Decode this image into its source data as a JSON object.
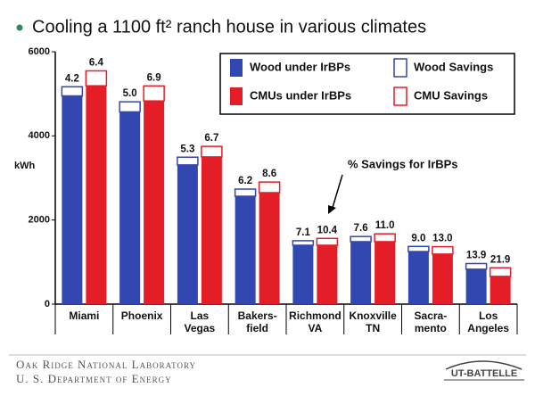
{
  "chart_data": {
    "type": "stacked-bar",
    "title": "Cooling a 1100 ft² ranch house in various climates",
    "ylabel": "kWh",
    "annotation": "% Savings for IrBPs",
    "categories": [
      "Miami",
      "Phoenix",
      "Las\nVegas",
      "Bakers-\nfield",
      "Richmond\nVA",
      "Knoxville\nTN",
      "Sacra-\nmento",
      "Los\nAngeles"
    ],
    "series": [
      {
        "name": "Wood under IrBPs",
        "color": "#3347b0",
        "stack": "wood",
        "values": [
          4950,
          4570,
          3310,
          2565,
          1400,
          1485,
          1250,
          830
        ]
      },
      {
        "name": "Wood Savings",
        "color": "#3347b0",
        "stack": "wood",
        "values": [
          217,
          240,
          183,
          170,
          107,
          122,
          122,
          135
        ],
        "value_labels": [
          "4.2",
          "5.0",
          "5.3",
          "6.2",
          "7.1",
          "7.6",
          "9.0",
          "13.9"
        ]
      },
      {
        "name": "CMUs under IrBPs",
        "color": "#e41e26",
        "stack": "cmu",
        "values": [
          5190,
          4830,
          3500,
          2650,
          1400,
          1485,
          1190,
          660
        ]
      },
      {
        "name": "CMU Savings",
        "color": "#e41e26",
        "stack": "cmu",
        "values": [
          355,
          357,
          250,
          252,
          163,
          186,
          176,
          204
        ],
        "value_labels": [
          "6.4",
          "6.9",
          "6.7",
          "8.6",
          "10.4",
          "11.0",
          "13.0",
          "21.9"
        ]
      }
    ],
    "ylim": [
      0,
      6000
    ],
    "yticks": [
      0,
      2000,
      4000,
      6000
    ],
    "footer": [
      "Oak Ridge National Laboratory",
      "U. S. Department of Energy"
    ],
    "logo": "UT-BATTELLE"
  }
}
